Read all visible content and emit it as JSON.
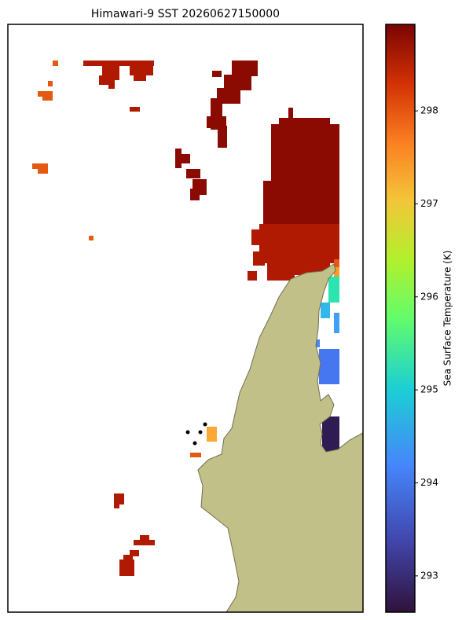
{
  "chart_data": {
    "type": "colormap",
    "title": "Himawari-9 SST 20260627150000",
    "colorbar_label": "Sea Surface Temperature (K)",
    "clim": [
      292.61,
      298.93
    ],
    "cticks": [
      293,
      294,
      295,
      296,
      297,
      298
    ]
  }
}
